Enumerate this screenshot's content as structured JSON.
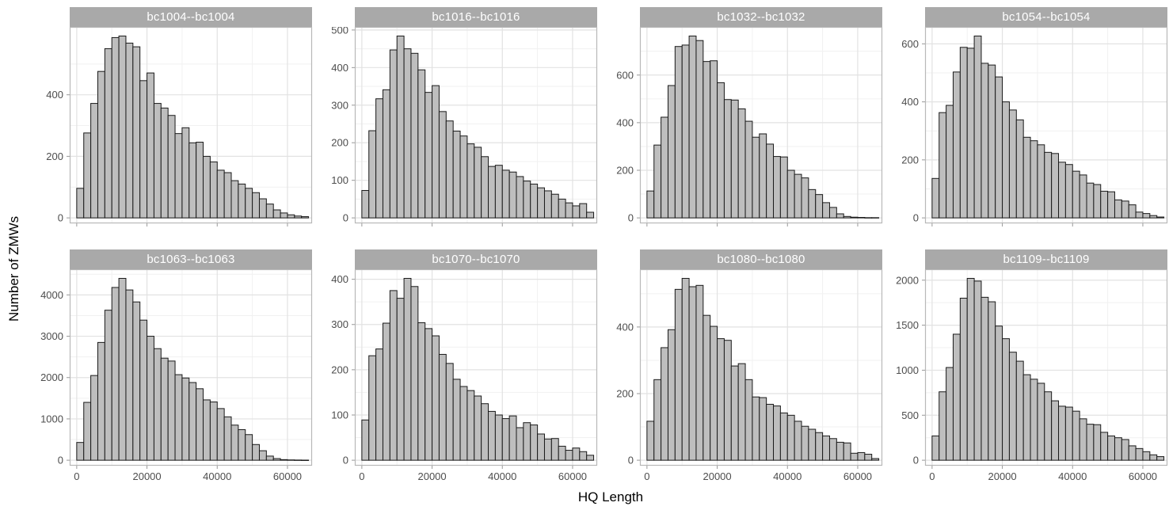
{
  "figure": {
    "colors": {
      "strip_bg": "#A9A9A9",
      "strip_text": "#FFFFFF",
      "bar_fill": "#BEBEBE",
      "bar_stroke": "#1A1A1A",
      "panel_border": "#B8B8B8",
      "grid_major": "#E2E2E2",
      "grid_minor": "#F1F1F1",
      "tick_label": "#4D4D4D",
      "tick_mark": "#999999",
      "axis_title": "#000000",
      "background": "#FFFFFF"
    }
  },
  "chart_data": {
    "type": "bar",
    "subtype": "faceted-histogram",
    "layout": "2 rows x 4 columns, shared x axis, free y axes, grid on, no legend",
    "xlabel": "HQ Length",
    "ylabel": "Number of ZMWs",
    "bin_start": 0,
    "bin_width": 2000,
    "xlim": [
      -2000,
      67000
    ],
    "x_ticks": [
      0,
      20000,
      40000,
      60000
    ],
    "x_tick_labels": [
      "0",
      "20000",
      "40000",
      "60000"
    ],
    "x_minor": [
      10000,
      30000,
      50000
    ],
    "facets": [
      {
        "label": "bc1004--bc1004",
        "y_ticks": [
          0,
          200,
          400
        ],
        "values": [
          96,
          276,
          372,
          476,
          550,
          586,
          591,
          568,
          556,
          446,
          471,
          372,
          357,
          333,
          274,
          293,
          244,
          246,
          200,
          182,
          155,
          147,
          121,
          110,
          96,
          82,
          62,
          45,
          26,
          16,
          10,
          6,
          4
        ]
      },
      {
        "label": "bc1016--bc1016",
        "y_ticks": [
          0,
          100,
          200,
          300,
          400,
          500
        ],
        "values": [
          73,
          232,
          317,
          341,
          447,
          484,
          450,
          438,
          394,
          334,
          352,
          283,
          258,
          231,
          218,
          197,
          188,
          163,
          137,
          140,
          127,
          122,
          110,
          98,
          90,
          80,
          72,
          63,
          50,
          40,
          32,
          38,
          15
        ]
      },
      {
        "label": "bc1032--bc1032",
        "y_ticks": [
          0,
          200,
          400,
          600
        ],
        "values": [
          113,
          306,
          423,
          556,
          720,
          726,
          764,
          745,
          657,
          660,
          568,
          497,
          495,
          458,
          406,
          339,
          353,
          310,
          258,
          256,
          200,
          183,
          168,
          119,
          98,
          64,
          44,
          17,
          6,
          3,
          2,
          1,
          1
        ]
      },
      {
        "label": "bc1054--bc1054",
        "y_ticks": [
          0,
          200,
          400,
          600
        ],
        "values": [
          136,
          363,
          388,
          503,
          588,
          585,
          627,
          533,
          527,
          486,
          400,
          372,
          338,
          278,
          266,
          252,
          226,
          222,
          192,
          184,
          161,
          148,
          120,
          115,
          92,
          90,
          62,
          58,
          45,
          20,
          15,
          8,
          3
        ]
      },
      {
        "label": "bc1063--bc1063",
        "y_ticks": [
          0,
          1000,
          2000,
          3000,
          4000
        ],
        "values": [
          430,
          1400,
          2050,
          2850,
          3630,
          4180,
          4400,
          4120,
          3830,
          3390,
          3000,
          2700,
          2470,
          2400,
          2070,
          1990,
          1880,
          1730,
          1460,
          1410,
          1250,
          1050,
          850,
          740,
          620,
          380,
          230,
          100,
          40,
          15,
          8,
          5,
          3
        ]
      },
      {
        "label": "bc1070--bc1070",
        "y_ticks": [
          0,
          100,
          200,
          300,
          400
        ],
        "values": [
          89,
          231,
          246,
          303,
          375,
          358,
          402,
          384,
          304,
          291,
          275,
          234,
          214,
          179,
          163,
          154,
          142,
          125,
          108,
          100,
          92,
          98,
          72,
          83,
          78,
          58,
          47,
          48,
          31,
          22,
          27,
          19,
          11
        ]
      },
      {
        "label": "bc1080--bc1080",
        "y_ticks": [
          0,
          200,
          400
        ],
        "values": [
          117,
          242,
          338,
          392,
          513,
          546,
          521,
          525,
          435,
          402,
          365,
          360,
          283,
          290,
          242,
          190,
          188,
          168,
          163,
          142,
          135,
          117,
          102,
          93,
          83,
          73,
          65,
          54,
          52,
          21,
          23,
          18,
          5
        ]
      },
      {
        "label": "bc1109--bc1109",
        "y_ticks": [
          0,
          500,
          1000,
          1500,
          2000
        ],
        "values": [
          270,
          760,
          1030,
          1400,
          1800,
          2020,
          1990,
          1810,
          1760,
          1490,
          1350,
          1200,
          1100,
          950,
          900,
          855,
          760,
          660,
          600,
          590,
          545,
          460,
          400,
          395,
          310,
          270,
          250,
          230,
          160,
          130,
          95,
          60,
          40
        ]
      }
    ]
  }
}
